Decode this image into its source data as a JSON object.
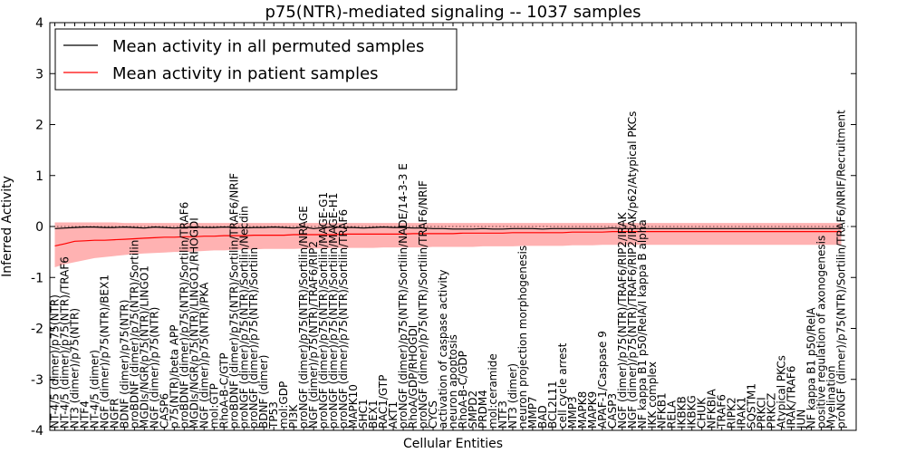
{
  "chart_data": {
    "type": "line",
    "title": "p75(NTR)-mediated signaling -- 1037 samples",
    "xlabel": "Cellular Entities",
    "ylabel": "Inferred Activity",
    "ylim": [
      -4,
      4
    ],
    "yticks": [
      -4,
      -3,
      -2,
      -1,
      0,
      1,
      2,
      3,
      4
    ],
    "grid": false,
    "legend_position": "top-left",
    "categories": [
      "NT-4/5 (dimer)/p75(NTR)",
      "NT-4/5 (dimer)/p75(NTR)/TRAF6",
      "NT3 (dimer)/p75(NTR)",
      "NTF4",
      "NT-4/5 (dimer)",
      "NGF (dimer)/p75(NTR)/BEX1",
      "NGFR",
      "BDNF (dimer)/p75(NTR)",
      "proBDNF (dimer)/p75(NTR)/Sortilin",
      "MGDIs/NGR/p75(NTR)/LINGO1",
      "NGF (dimer)/p75(NTR)",
      "CASP6",
      "p75(NTR)/beta APP",
      "proBDNF (dimer)/p75(NTR)/Sortilin/TRAF6",
      "MGDIs/NGR/p75(NTR)/LINGO1/RHOGDI",
      "NGF (dimer)/p75(NTR)/PKA",
      "mol:GTP",
      "RhoA-B-C/GTP",
      "proBDNF (dimer)/p75(NTR)/Sortilin/TRAF6/NRIF",
      "proNGF (dimer)/p75(NTR)/Sortilin/Necdin",
      "proNGF (dimer)/p75(NTR)/Sortilin",
      "BDNF (dimer)",
      "TP53",
      "mol:GDP",
      "PI3K",
      "proNGF (dimer)/p75(NTR)/Sortilin/NRAGE",
      "NGF (dimer)/p75(NTR)/TRAF6/RIP2",
      "proNGF (dimer)/p75(NTR)/Sortilin/MAGE-G1",
      "proNGF (dimer)/p75(NTR)/Sortilin/MAGE-H1",
      "proNGF (dimer)/p75(NTR)/Sortilin/TRAF6",
      "MAPK10",
      "SHC1",
      "BEX1",
      "RAC1/GTP",
      "AKT1",
      "proNGF (dimer)/p75(NTR)/Sortilin/NADE/14-3-3 E",
      "RhoA/GDP/RHOGDI",
      "proNGF (dimer)/p75(NTR)/Sortilin/TRAF6/NRIF",
      "CYCS",
      "activation of caspase activity",
      "neuron apoptosis",
      "RhoA-B-C/GDP",
      "SMPD2",
      "PRDM4",
      "mol:ceramide",
      "NTF3",
      "NT3 (dimer)",
      "neuron projection morphogenesis",
      "MMP7",
      "BAD",
      "BCL2L11",
      "cell cycle arrest",
      "MMP3",
      "MAPK8",
      "MAPK9",
      "APAF-1/Caspase 9",
      "CASP3",
      "NGF (dimer)/p75(NTR)/TRAF6/RIP2/IRAK",
      "NGF (dimer)/p75(NTR)/TRAF6/RIP2/IRAK/p62/Atypical PKCs",
      "NF kappa B1 p50/RelA/I kappa B alpha",
      "IKK complex",
      "NFKB1",
      "RELA",
      "IKBKB",
      "IKBKG",
      "CHUK",
      "NFKBIA",
      "TRAF6",
      "RIPK2",
      "IRAK1",
      "SQSTM1",
      "PRKCI",
      "PRKCZ",
      "Atypical PKCs",
      "IRAK/TRAF6",
      "JUN",
      "NF kappa B1 p50/RelA",
      "positive regulation of axonogenesis",
      "Myelination",
      "proNGF (dimer)/p75(NTR)/Sortilin/TRAF6/NRIF/Recruitment"
    ],
    "series": [
      {
        "name": "Mean activity in all permuted samples",
        "color": "#000000",
        "values": [
          -0.04,
          -0.03,
          -0.02,
          -0.01,
          -0.01,
          -0.02,
          -0.02,
          -0.01,
          -0.02,
          -0.03,
          -0.01,
          -0.02,
          -0.03,
          -0.02,
          -0.01,
          -0.02,
          -0.02,
          -0.01,
          -0.02,
          -0.03,
          -0.02,
          -0.02,
          -0.01,
          -0.02,
          -0.03,
          -0.01,
          -0.04,
          -0.02,
          -0.01,
          -0.02,
          -0.02,
          -0.03,
          -0.02,
          -0.01,
          -0.02,
          -0.02,
          -0.03,
          -0.03,
          -0.04,
          -0.04,
          -0.05,
          -0.05,
          -0.05,
          -0.04,
          -0.05,
          -0.05,
          -0.04,
          -0.04,
          -0.04,
          -0.05,
          -0.04,
          -0.04,
          -0.04,
          -0.04,
          -0.04,
          -0.04,
          -0.03,
          -0.04,
          -0.04,
          -0.04,
          -0.04,
          -0.04,
          -0.04,
          -0.04,
          -0.04,
          -0.04,
          -0.04,
          -0.04,
          -0.04,
          -0.04,
          -0.04,
          -0.04,
          -0.04,
          -0.04,
          -0.04,
          -0.04,
          -0.04,
          -0.04,
          -0.04,
          -0.04
        ]
      },
      {
        "name": "Mean activity in patient samples",
        "color": "#ff0000",
        "values": [
          -0.38,
          -0.34,
          -0.29,
          -0.28,
          -0.27,
          -0.27,
          -0.26,
          -0.25,
          -0.24,
          -0.23,
          -0.22,
          -0.21,
          -0.21,
          -0.2,
          -0.2,
          -0.19,
          -0.19,
          -0.18,
          -0.18,
          -0.18,
          -0.17,
          -0.17,
          -0.17,
          -0.17,
          -0.16,
          -0.16,
          -0.16,
          -0.16,
          -0.16,
          -0.15,
          -0.15,
          -0.15,
          -0.15,
          -0.15,
          -0.15,
          -0.15,
          -0.14,
          -0.14,
          -0.14,
          -0.14,
          -0.14,
          -0.13,
          -0.13,
          -0.13,
          -0.13,
          -0.13,
          -0.12,
          -0.12,
          -0.12,
          -0.12,
          -0.12,
          -0.12,
          -0.11,
          -0.11,
          -0.11,
          -0.11,
          -0.1,
          -0.1,
          -0.1,
          -0.1,
          -0.1,
          -0.1,
          -0.1,
          -0.1,
          -0.1,
          -0.1,
          -0.1,
          -0.1,
          -0.1,
          -0.1,
          -0.1,
          -0.1,
          -0.1,
          -0.1,
          -0.1,
          -0.1,
          -0.1,
          -0.1,
          -0.1,
          -0.1
        ],
        "band_upper": [
          0.08,
          0.08,
          0.08,
          0.08,
          0.08,
          0.08,
          0.08,
          0.07,
          0.07,
          0.07,
          0.07,
          0.07,
          0.07,
          0.07,
          0.07,
          0.07,
          0.07,
          0.07,
          0.07,
          0.07,
          0.07,
          0.07,
          0.07,
          0.07,
          0.07,
          0.07,
          0.07,
          0.07,
          0.07,
          0.07,
          0.07,
          0.07,
          0.07,
          0.07,
          0.07,
          0.07,
          0.07,
          0.07,
          0.07,
          0.07,
          0.07,
          0.07,
          0.07,
          0.07,
          0.07,
          0.07,
          0.07,
          0.07,
          0.07,
          0.07,
          0.07,
          0.07,
          0.07,
          0.07,
          0.07,
          0.07,
          0.07,
          0.07,
          0.07,
          0.07,
          0.07,
          0.07,
          0.07,
          0.07,
          0.07,
          0.07,
          0.07,
          0.07,
          0.07,
          0.07,
          0.07,
          0.07,
          0.07,
          0.07,
          0.07,
          0.07,
          0.07,
          0.07,
          0.07,
          0.07
        ],
        "band_lower": [
          -0.8,
          -0.74,
          -0.7,
          -0.66,
          -0.62,
          -0.6,
          -0.58,
          -0.56,
          -0.54,
          -0.53,
          -0.52,
          -0.51,
          -0.5,
          -0.5,
          -0.49,
          -0.48,
          -0.47,
          -0.47,
          -0.46,
          -0.45,
          -0.45,
          -0.44,
          -0.44,
          -0.44,
          -0.44,
          -0.43,
          -0.43,
          -0.43,
          -0.42,
          -0.42,
          -0.42,
          -0.42,
          -0.42,
          -0.41,
          -0.41,
          -0.41,
          -0.41,
          -0.41,
          -0.4,
          -0.4,
          -0.4,
          -0.4,
          -0.4,
          -0.39,
          -0.39,
          -0.39,
          -0.39,
          -0.38,
          -0.38,
          -0.38,
          -0.38,
          -0.38,
          -0.37,
          -0.37,
          -0.37,
          -0.36,
          -0.36,
          -0.36,
          -0.36,
          -0.36,
          -0.36,
          -0.36,
          -0.36,
          -0.36,
          -0.36,
          -0.36,
          -0.36,
          -0.36,
          -0.36,
          -0.36,
          -0.36,
          -0.36,
          -0.36,
          -0.36,
          -0.36,
          -0.36,
          -0.36,
          -0.36,
          -0.36,
          -0.36
        ]
      }
    ]
  }
}
